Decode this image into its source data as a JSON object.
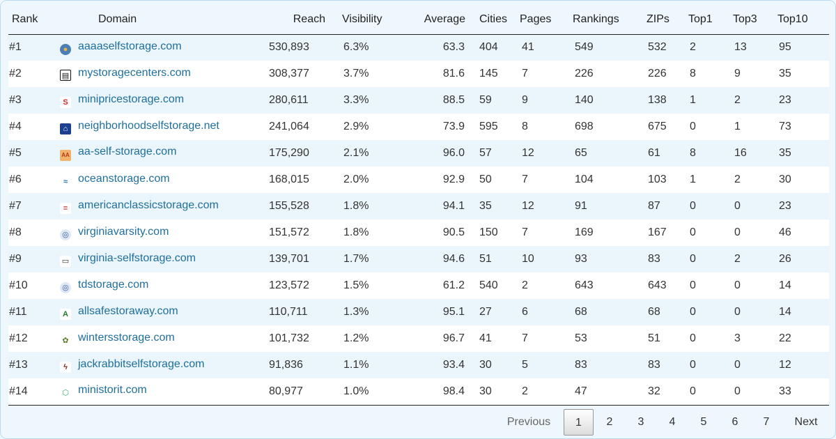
{
  "columns": {
    "rank": "Rank",
    "domain": "Domain",
    "reach": "Reach",
    "visibility": "Visibility",
    "average": "Average",
    "cities": "Cities",
    "pages": "Pages",
    "rankings": "Rankings",
    "zips": "ZIPs",
    "top1": "Top1",
    "top3": "Top3",
    "top10": "Top10"
  },
  "rows": [
    {
      "rank": "#1",
      "domain": "aaaaselfstorage.com",
      "favicon": "aaaa-logo-icon",
      "reach": "530,893",
      "visibility": "6.3%",
      "average": "63.3",
      "cities": "404",
      "pages": "41",
      "rankings": "549",
      "zips": "532",
      "top1": "2",
      "top3": "13",
      "top10": "95"
    },
    {
      "rank": "#2",
      "domain": "mystoragecenters.com",
      "favicon": "building-icon",
      "reach": "308,377",
      "visibility": "3.7%",
      "average": "81.6",
      "cities": "145",
      "pages": "7",
      "rankings": "226",
      "zips": "226",
      "top1": "8",
      "top3": "9",
      "top10": "35"
    },
    {
      "rank": "#3",
      "domain": "minipricestorage.com",
      "favicon": "dollar-icon",
      "reach": "280,611",
      "visibility": "3.3%",
      "average": "88.5",
      "cities": "59",
      "pages": "9",
      "rankings": "140",
      "zips": "138",
      "top1": "1",
      "top3": "2",
      "top10": "23"
    },
    {
      "rank": "#4",
      "domain": "neighborhoodselfstorage.net",
      "favicon": "house-icon",
      "reach": "241,064",
      "visibility": "2.9%",
      "average": "73.9",
      "cities": "595",
      "pages": "8",
      "rankings": "698",
      "zips": "675",
      "top1": "0",
      "top3": "1",
      "top10": "73"
    },
    {
      "rank": "#5",
      "domain": "aa-self-storage.com",
      "favicon": "aa-logo-icon",
      "reach": "175,290",
      "visibility": "2.1%",
      "average": "96.0",
      "cities": "57",
      "pages": "12",
      "rankings": "65",
      "zips": "61",
      "top1": "8",
      "top3": "16",
      "top10": "35"
    },
    {
      "rank": "#6",
      "domain": "oceanstorage.com",
      "favicon": "wave-icon",
      "reach": "168,015",
      "visibility": "2.0%",
      "average": "92.9",
      "cities": "50",
      "pages": "7",
      "rankings": "104",
      "zips": "103",
      "top1": "1",
      "top3": "2",
      "top10": "30"
    },
    {
      "rank": "#7",
      "domain": "americanclassicstorage.com",
      "favicon": "flag-icon",
      "reach": "155,528",
      "visibility": "1.8%",
      "average": "94.1",
      "cities": "35",
      "pages": "12",
      "rankings": "91",
      "zips": "87",
      "top1": "0",
      "top3": "0",
      "top10": "23"
    },
    {
      "rank": "#8",
      "domain": "virginiavarsity.com",
      "favicon": "globe-icon",
      "reach": "151,572",
      "visibility": "1.8%",
      "average": "90.5",
      "cities": "150",
      "pages": "7",
      "rankings": "169",
      "zips": "167",
      "top1": "0",
      "top3": "0",
      "top10": "46"
    },
    {
      "rank": "#9",
      "domain": "virginia-selfstorage.com",
      "favicon": "truck-icon",
      "reach": "139,701",
      "visibility": "1.7%",
      "average": "94.6",
      "cities": "51",
      "pages": "10",
      "rankings": "93",
      "zips": "83",
      "top1": "0",
      "top3": "2",
      "top10": "26"
    },
    {
      "rank": "#10",
      "domain": "tdstorage.com",
      "favicon": "globe-icon",
      "reach": "123,572",
      "visibility": "1.5%",
      "average": "61.2",
      "cities": "540",
      "pages": "2",
      "rankings": "643",
      "zips": "643",
      "top1": "0",
      "top3": "0",
      "top10": "14"
    },
    {
      "rank": "#11",
      "domain": "allsafestoraway.com",
      "favicon": "green-a-icon",
      "reach": "110,711",
      "visibility": "1.3%",
      "average": "95.1",
      "cities": "27",
      "pages": "6",
      "rankings": "68",
      "zips": "68",
      "top1": "0",
      "top3": "0",
      "top10": "14"
    },
    {
      "rank": "#12",
      "domain": "wintersstorage.com",
      "favicon": "leaf-icon",
      "reach": "101,732",
      "visibility": "1.2%",
      "average": "96.7",
      "cities": "41",
      "pages": "7",
      "rankings": "53",
      "zips": "51",
      "top1": "0",
      "top3": "3",
      "top10": "22"
    },
    {
      "rank": "#13",
      "domain": "jackrabbitselfstorage.com",
      "favicon": "rabbit-icon",
      "reach": "91,836",
      "visibility": "1.1%",
      "average": "93.4",
      "cities": "30",
      "pages": "5",
      "rankings": "83",
      "zips": "83",
      "top1": "0",
      "top3": "0",
      "top10": "12"
    },
    {
      "rank": "#14",
      "domain": "ministorit.com",
      "favicon": "hexagon-icon",
      "reach": "80,977",
      "visibility": "1.0%",
      "average": "98.4",
      "cities": "30",
      "pages": "2",
      "rankings": "47",
      "zips": "32",
      "top1": "0",
      "top3": "0",
      "top10": "33"
    }
  ],
  "pagination": {
    "previous": "Previous",
    "next": "Next",
    "pages": [
      "1",
      "2",
      "3",
      "4",
      "5",
      "6",
      "7"
    ],
    "current": "1"
  }
}
